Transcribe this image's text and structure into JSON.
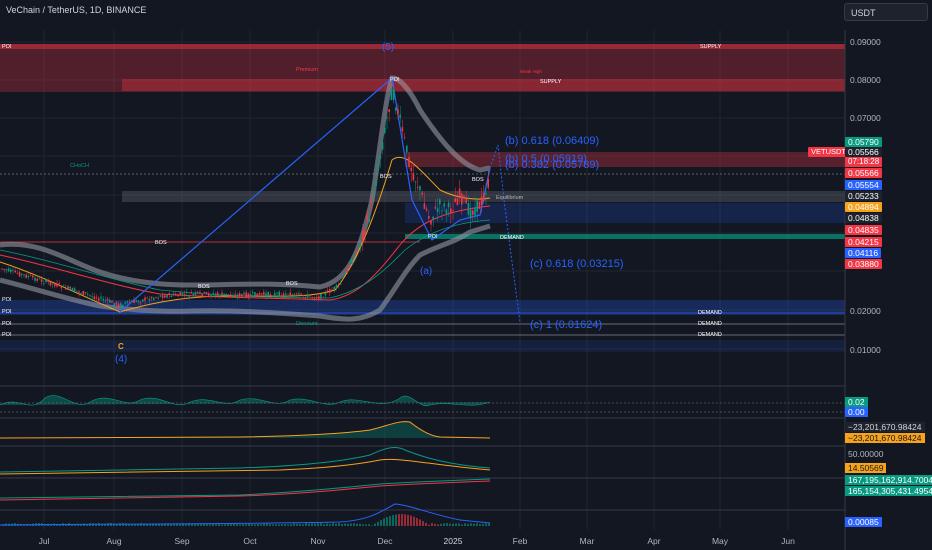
{
  "header": {
    "title": "VeChain / TetherUS, 1D, BINANCE"
  },
  "currency": "USDT",
  "ticker_tag": "VETUSDT",
  "countdown": "07:18:28",
  "y_axis": [
    {
      "label": "0.09000",
      "value": 0.09
    },
    {
      "label": "0.08000",
      "value": 0.08
    },
    {
      "label": "0.07000",
      "value": 0.07
    },
    {
      "label": "0.02000",
      "value": 0.02
    },
    {
      "label": "0.01000",
      "value": 0.01
    }
  ],
  "x_axis": [
    "Jul",
    "Aug",
    "Sep",
    "Oct",
    "Nov",
    "Dec",
    "2025",
    "Feb",
    "Mar",
    "Apr",
    "May",
    "Jun"
  ],
  "price_tags": [
    {
      "label": "0.05790",
      "color": "#089981"
    },
    {
      "label": "0.05566",
      "color": "#1e222d"
    },
    {
      "label": "0.05566",
      "color": "#f23645"
    },
    {
      "label": "0.05554",
      "color": "#2962ff"
    },
    {
      "label": "0.05233",
      "color": "#1e222d"
    },
    {
      "label": "0.04894",
      "color": "#f7a21b"
    },
    {
      "label": "0.04838",
      "color": "#1e222d"
    },
    {
      "label": "0.04835",
      "color": "#f23645"
    },
    {
      "label": "0.04215",
      "color": "#f23645"
    },
    {
      "label": "0.04116",
      "color": "#2962ff"
    },
    {
      "label": "0.03880",
      "color": "#f23645"
    }
  ],
  "fib_levels": [
    {
      "label": "(b) 0.618 (0.06409)"
    },
    {
      "label": "(b) 0.5 (0.05919)"
    },
    {
      "label": "(b) 0.382 (0.05789)"
    },
    {
      "label": "(c) 0.618 (0.03215)"
    },
    {
      "label": "(c) 1 (0.01624)"
    }
  ],
  "wave_labels": {
    "w5": "(5)",
    "w4": "(4)",
    "wa": "(a)",
    "c": "C"
  },
  "annotations": {
    "poi": "POI",
    "supply": "SUPPLY",
    "demand": "DEMAND",
    "premium": "Premium",
    "weak_high": "Weak High",
    "discount": "Discount",
    "equilibrium": "Equilibrium",
    "choch": "CHoCH",
    "bos": "BOS"
  },
  "indicators": [
    {
      "label": "0.02",
      "color": "#089981"
    },
    {
      "label": "0.00",
      "color": "#2962ff"
    },
    {
      "label": "−23,201,670.98424",
      "color": "#b2b5be"
    },
    {
      "label": "−23,201,670.98424",
      "color": "#f7a21b"
    },
    {
      "label": "50.00000",
      "color": "#b2b5be"
    },
    {
      "label": "14.50569",
      "color": "#f7a21b"
    },
    {
      "label": "167,195,162,914.70040",
      "color": "#089981"
    },
    {
      "label": "165,154,305,431.49548",
      "color": "#089981"
    },
    {
      "label": "0.00085",
      "color": "#2962ff"
    }
  ]
}
